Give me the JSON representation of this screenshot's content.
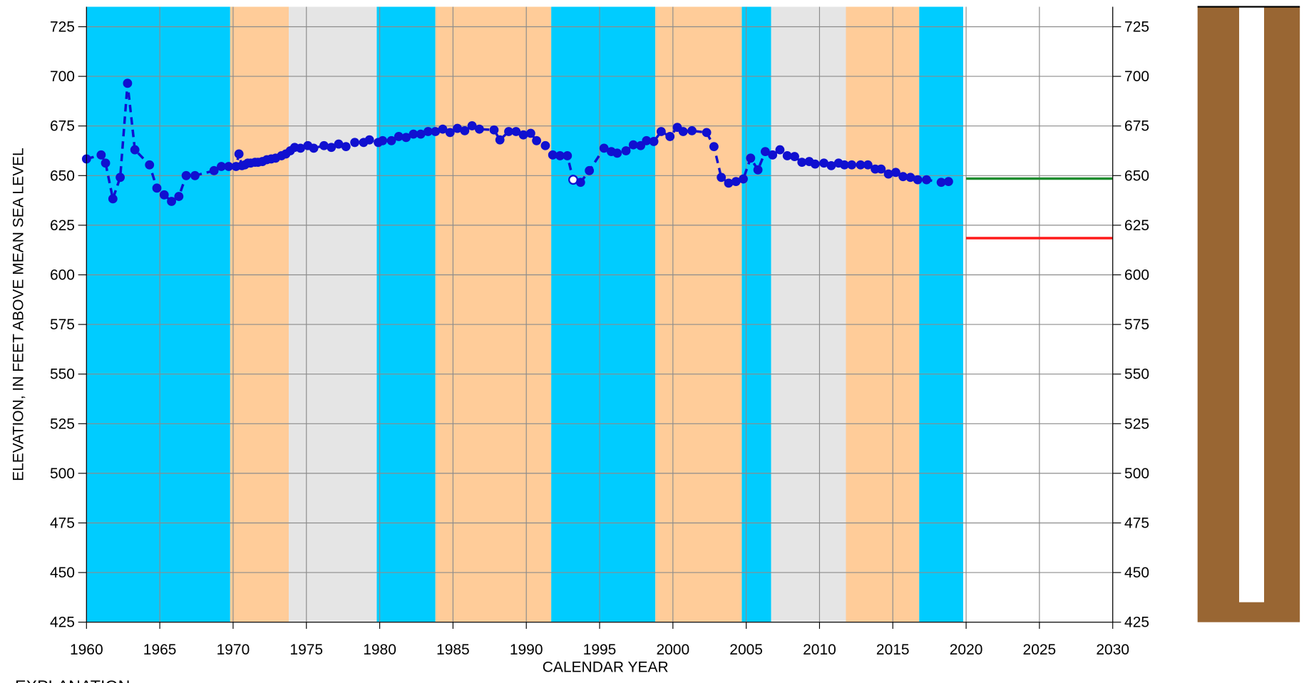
{
  "chart_data": {
    "type": "line",
    "x_label": "CALENDAR YEAR",
    "y_label": "ELEVATION, IN FEET ABOVE MEAN SEA LEVEL",
    "explanation": "EXPLANATION",
    "xlim": [
      1960,
      2030
    ],
    "xticks": [
      1960,
      1965,
      1970,
      1975,
      1980,
      1985,
      1990,
      1995,
      2000,
      2005,
      2010,
      2015,
      2020,
      2025,
      2030
    ],
    "ylim": [
      425,
      725
    ],
    "yticks": [
      425,
      450,
      475,
      500,
      525,
      550,
      575,
      600,
      625,
      650,
      675,
      700,
      725
    ],
    "grid": true,
    "periods": [
      {
        "start": 1960,
        "end": 1969.8,
        "color": "#00ccff"
      },
      {
        "start": 1969.8,
        "end": 1973.8,
        "color": "#ffcc99"
      },
      {
        "start": 1973.8,
        "end": 1979.8,
        "color": "#e5e5e5"
      },
      {
        "start": 1979.8,
        "end": 1983.8,
        "color": "#00ccff"
      },
      {
        "start": 1983.8,
        "end": 1991.7,
        "color": "#ffcc99"
      },
      {
        "start": 1991.7,
        "end": 1998.8,
        "color": "#00ccff"
      },
      {
        "start": 1998.8,
        "end": 2004.7,
        "color": "#ffcc99"
      },
      {
        "start": 2004.7,
        "end": 2006.7,
        "color": "#00ccff"
      },
      {
        "start": 2006.7,
        "end": 2011.8,
        "color": "#e5e5e5"
      },
      {
        "start": 2011.8,
        "end": 2016.8,
        "color": "#ffcc99"
      },
      {
        "start": 2016.8,
        "end": 2019.8,
        "color": "#00ccff"
      }
    ],
    "reference_lines": [
      {
        "value": 648.5,
        "color": "#1e8c2e",
        "x": [
          2020,
          2030
        ]
      },
      {
        "value": 618.5,
        "color": "#ff1a1a",
        "x": [
          2020,
          2030
        ]
      }
    ],
    "color": "#1010d0",
    "open_markers": [
      69
    ],
    "x": [
      1960.0,
      1961.0,
      1961.3,
      1961.8,
      1962.3,
      1962.8,
      1963.3,
      1964.3,
      1964.8,
      1965.3,
      1965.8,
      1966.3,
      1966.8,
      1967.4,
      1968.7,
      1969.2,
      1969.7,
      1970.2,
      1970.4,
      1970.6,
      1970.8,
      1971.0,
      1971.2,
      1971.5,
      1971.7,
      1972.0,
      1972.3,
      1972.6,
      1972.9,
      1973.3,
      1973.6,
      1973.9,
      1974.2,
      1974.6,
      1975.1,
      1975.5,
      1976.2,
      1976.7,
      1977.2,
      1977.7,
      1978.3,
      1978.9,
      1979.3,
      1979.9,
      1980.2,
      1980.8,
      1981.3,
      1981.8,
      1982.3,
      1982.8,
      1983.3,
      1983.8,
      1984.3,
      1984.8,
      1985.3,
      1985.8,
      1986.3,
      1986.8,
      1987.8,
      1988.2,
      1988.8,
      1989.3,
      1989.8,
      1990.3,
      1990.7,
      1991.3,
      1991.8,
      1992.3,
      1992.8,
      1993.2,
      1993.7,
      1994.3,
      1995.3,
      1995.8,
      1996.2,
      1996.8,
      1997.3,
      1997.8,
      1998.2,
      1998.7,
      1999.2,
      1999.8,
      2000.3,
      2000.7,
      2001.3,
      2002.3,
      2002.8,
      2003.3,
      2003.8,
      2004.3,
      2004.8,
      2005.3,
      2005.8,
      2006.3,
      2006.8,
      2007.3,
      2007.8,
      2008.3,
      2008.8,
      2009.3,
      2009.7,
      2010.3,
      2010.8,
      2011.3,
      2011.7,
      2012.2,
      2012.8,
      2013.3,
      2013.8,
      2014.2,
      2014.7,
      2015.2,
      2015.7,
      2016.2,
      2016.7,
      2017.3,
      2018.3,
      2018.8
    ],
    "values": [
      658.4,
      660.4,
      656.3,
      638.3,
      649.1,
      696.5,
      663.0,
      655.4,
      643.7,
      640.3,
      637.0,
      639.5,
      650.0,
      650.0,
      652.5,
      654.6,
      654.6,
      654.6,
      660.9,
      655.0,
      655.4,
      656.3,
      656.3,
      656.7,
      656.7,
      657.1,
      658.0,
      658.4,
      658.8,
      660.0,
      660.9,
      662.5,
      664.2,
      663.8,
      665.1,
      663.8,
      665.1,
      664.2,
      665.9,
      664.6,
      666.7,
      666.7,
      668.0,
      666.7,
      667.6,
      667.6,
      669.7,
      669.2,
      670.9,
      670.9,
      672.2,
      672.2,
      673.4,
      671.7,
      673.8,
      672.6,
      675.1,
      673.4,
      673.0,
      668.0,
      672.2,
      672.2,
      670.5,
      671.3,
      667.6,
      665.1,
      660.4,
      660.0,
      660.0,
      647.9,
      646.6,
      652.5,
      663.8,
      662.1,
      661.3,
      662.5,
      665.5,
      665.1,
      667.6,
      667.2,
      672.2,
      669.7,
      674.3,
      672.2,
      672.6,
      671.7,
      664.6,
      649.1,
      646.2,
      647.0,
      648.3,
      658.8,
      652.9,
      662.1,
      660.4,
      663.0,
      660.0,
      659.6,
      656.7,
      657.1,
      655.8,
      656.3,
      655.0,
      656.3,
      655.4,
      655.4,
      655.4,
      655.4,
      653.3,
      653.3,
      650.8,
      651.6,
      649.5,
      649.1,
      647.9,
      647.9,
      646.6,
      647.0
    ]
  }
}
